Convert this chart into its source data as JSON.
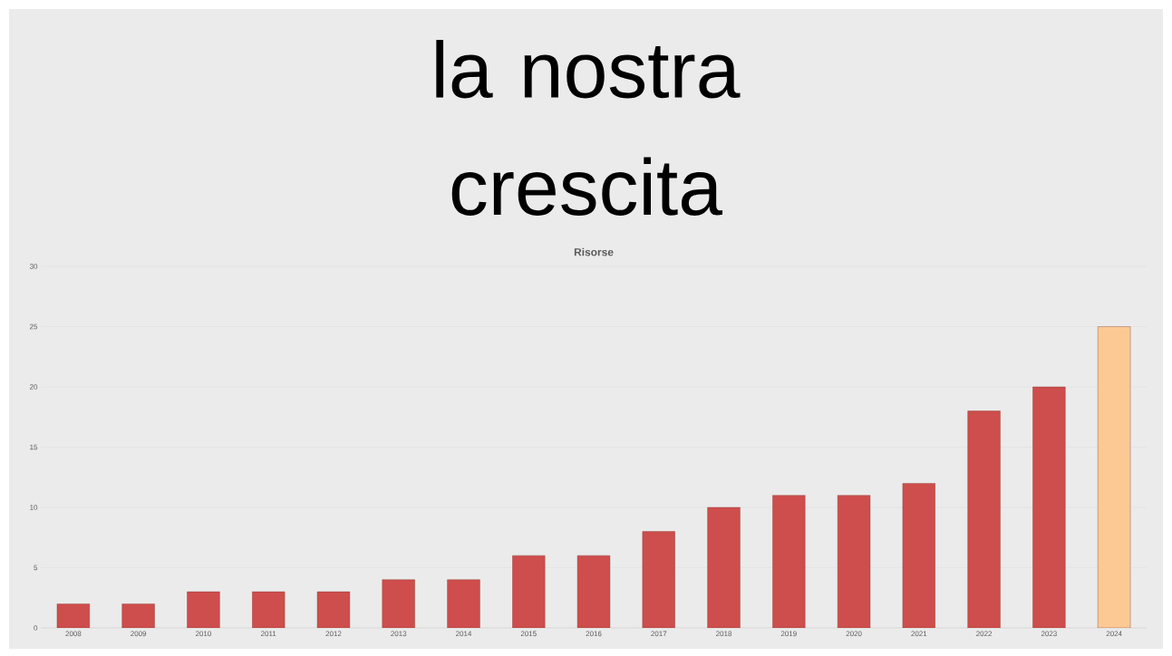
{
  "chart_data": {
    "type": "bar",
    "title": "la nostra crescita",
    "subtitle": "Risorse",
    "categories": [
      "2008",
      "2009",
      "2010",
      "2011",
      "2012",
      "2013",
      "2014",
      "2015",
      "2016",
      "2017",
      "2018",
      "2019",
      "2020",
      "2021",
      "2022",
      "2023",
      "2024"
    ],
    "values": [
      2,
      2,
      3,
      3,
      3,
      4,
      4,
      6,
      6,
      8,
      10,
      11,
      11,
      12,
      18,
      20,
      25
    ],
    "colors": [
      "#cd4e4c",
      "#cd4e4c",
      "#cd4e4c",
      "#cd4e4c",
      "#cd4e4c",
      "#cd4e4c",
      "#cd4e4c",
      "#cd4e4c",
      "#cd4e4c",
      "#cd4e4c",
      "#cd4e4c",
      "#cd4e4c",
      "#cd4e4c",
      "#cd4e4c",
      "#cd4e4c",
      "#cd4e4c",
      "#fcc994"
    ],
    "ylim": [
      0,
      30
    ],
    "yticks": [
      0,
      5,
      10,
      15,
      20,
      25,
      30
    ],
    "grid": "y"
  }
}
